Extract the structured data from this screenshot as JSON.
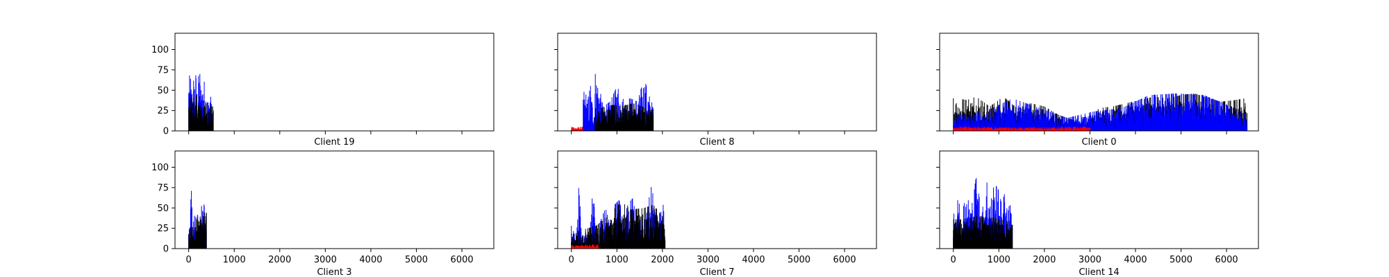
{
  "chart_data": [
    {
      "type": "bar",
      "title": "Client 19",
      "row": 0,
      "col": 0,
      "xlim": [
        -300,
        6700
      ],
      "ylim": [
        0,
        120
      ],
      "xticks": [
        0,
        1000,
        2000,
        3000,
        4000,
        5000,
        6000
      ],
      "xticklabels_visible": false,
      "yticks": [
        0,
        25,
        50,
        75,
        100
      ],
      "yticklabels_visible": true,
      "segments": [
        {
          "x": [
            0,
            540
          ],
          "color": "#0000ff",
          "peaks": [
            [
              30,
              68
            ],
            [
              70,
              55
            ],
            [
              110,
              62
            ],
            [
              150,
              72
            ],
            [
              190,
              48
            ],
            [
              230,
              78
            ],
            [
              270,
              58
            ],
            [
              310,
              62
            ],
            [
              350,
              60
            ],
            [
              390,
              44
            ],
            [
              430,
              40
            ],
            [
              470,
              50
            ],
            [
              510,
              30
            ]
          ],
          "base": 20
        },
        {
          "x": [
            0,
            540
          ],
          "color": "#000000",
          "peaks": [
            [
              90,
              40
            ],
            [
              200,
              45
            ],
            [
              320,
              38
            ],
            [
              440,
              30
            ]
          ],
          "base": 15
        }
      ]
    },
    {
      "type": "bar",
      "title": "Client 8",
      "row": 0,
      "col": 1,
      "xlim": [
        -300,
        6700
      ],
      "ylim": [
        0,
        120
      ],
      "xticks": [
        0,
        1000,
        2000,
        3000,
        4000,
        5000,
        6000
      ],
      "xticklabels_visible": false,
      "yticks": [
        0,
        25,
        50,
        75,
        100
      ],
      "yticklabels_visible": false,
      "segments": [
        {
          "x": [
            0,
            260
          ],
          "color": "#ff0000",
          "peaks": [
            [
              20,
              6
            ],
            [
              120,
              4
            ],
            [
              220,
              5
            ]
          ],
          "base": 3
        },
        {
          "x": [
            260,
            520
          ],
          "color": "#0000ff",
          "peaks": [
            [
              300,
              48
            ],
            [
              360,
              38
            ],
            [
              420,
              56
            ],
            [
              480,
              30
            ]
          ],
          "base": 12
        },
        {
          "x": [
            520,
            1800
          ],
          "color": "#0000ff",
          "peaks": [
            [
              560,
              70
            ],
            [
              700,
              30
            ],
            [
              850,
              36
            ],
            [
              1000,
              55
            ],
            [
              1150,
              38
            ],
            [
              1300,
              40
            ],
            [
              1450,
              36
            ],
            [
              1600,
              65
            ],
            [
              1750,
              35
            ]
          ],
          "base": 15
        },
        {
          "x": [
            520,
            1800
          ],
          "color": "#000000",
          "peaks": [
            [
              650,
              28
            ],
            [
              900,
              32
            ],
            [
              1100,
              30
            ],
            [
              1350,
              34
            ],
            [
              1550,
              30
            ],
            [
              1700,
              26
            ]
          ],
          "base": 12
        }
      ]
    },
    {
      "type": "bar",
      "title": "Client 0",
      "row": 0,
      "col": 2,
      "xlim": [
        -300,
        6700
      ],
      "ylim": [
        0,
        120
      ],
      "xticks": [
        0,
        1000,
        2000,
        3000,
        4000,
        5000,
        6000
      ],
      "xticklabels_visible": false,
      "yticks": [
        0,
        25,
        50,
        75,
        100
      ],
      "yticklabels_visible": false,
      "segments": [
        {
          "x": [
            0,
            6450
          ],
          "color": "#000000",
          "peaks": [
            [
              50,
              40
            ],
            [
              300,
              38
            ],
            [
              500,
              42
            ],
            [
              800,
              30
            ],
            [
              1100,
              42
            ],
            [
              1400,
              28
            ],
            [
              1700,
              34
            ],
            [
              2000,
              30
            ],
            [
              2300,
              20
            ],
            [
              2600,
              14
            ],
            [
              2900,
              10
            ],
            [
              3200,
              28
            ],
            [
              3500,
              30
            ],
            [
              3800,
              34
            ],
            [
              4100,
              38
            ],
            [
              4400,
              42
            ],
            [
              4700,
              40
            ],
            [
              5000,
              44
            ],
            [
              5300,
              46
            ],
            [
              5600,
              40
            ],
            [
              5900,
              36
            ],
            [
              6200,
              38
            ],
            [
              6400,
              40
            ]
          ],
          "base": 8
        },
        {
          "x": [
            0,
            6450
          ],
          "color": "#0000ff",
          "peaks": [
            [
              200,
              20
            ],
            [
              700,
              24
            ],
            [
              1300,
              40
            ],
            [
              1900,
              28
            ],
            [
              2500,
              16
            ],
            [
              3100,
              24
            ],
            [
              3700,
              28
            ],
            [
              4300,
              44
            ],
            [
              4900,
              46
            ],
            [
              5500,
              44
            ],
            [
              6100,
              30
            ],
            [
              6450,
              20
            ]
          ],
          "base": 8
        },
        {
          "x": [
            0,
            3000
          ],
          "color": "#ff0000",
          "peaks": [
            [
              400,
              5
            ],
            [
              1500,
              4
            ],
            [
              2700,
              5
            ]
          ],
          "base": 2
        }
      ]
    },
    {
      "type": "bar",
      "title": "Client 3",
      "row": 1,
      "col": 0,
      "xlim": [
        -300,
        6700
      ],
      "ylim": [
        0,
        120
      ],
      "xticks": [
        0,
        1000,
        2000,
        3000,
        4000,
        5000,
        6000
      ],
      "xticklabels_visible": true,
      "yticks": [
        0,
        25,
        50,
        75,
        100
      ],
      "yticklabels_visible": true,
      "segments": [
        {
          "x": [
            0,
            390
          ],
          "color": "#0000ff",
          "peaks": [
            [
              30,
              24
            ],
            [
              60,
              85
            ],
            [
              100,
              30
            ],
            [
              150,
              50
            ],
            [
              200,
              40
            ],
            [
              250,
              30
            ],
            [
              300,
              65
            ],
            [
              350,
              50
            ],
            [
              380,
              36
            ]
          ],
          "base": 15
        },
        {
          "x": [
            0,
            390
          ],
          "color": "#000000",
          "peaks": [
            [
              80,
              26
            ],
            [
              170,
              38
            ],
            [
              230,
              32
            ],
            [
              320,
              62
            ],
            [
              370,
              44
            ]
          ],
          "base": 15
        }
      ]
    },
    {
      "type": "bar",
      "title": "Client 7",
      "row": 1,
      "col": 1,
      "xlim": [
        -300,
        6700
      ],
      "ylim": [
        0,
        120
      ],
      "xticks": [
        0,
        1000,
        2000,
        3000,
        4000,
        5000,
        6000
      ],
      "xticklabels_visible": true,
      "yticks": [
        0,
        25,
        50,
        75,
        100
      ],
      "yticklabels_visible": false,
      "segments": [
        {
          "x": [
            0,
            2060
          ],
          "color": "#0000ff",
          "peaks": [
            [
              20,
              28
            ],
            [
              100,
              10
            ],
            [
              160,
              76
            ],
            [
              250,
              8
            ],
            [
              320,
              20
            ],
            [
              400,
              8
            ],
            [
              470,
              75
            ],
            [
              560,
              12
            ],
            [
              650,
              36
            ],
            [
              750,
              50
            ],
            [
              850,
              30
            ],
            [
              950,
              54
            ],
            [
              1050,
              60
            ],
            [
              1150,
              36
            ],
            [
              1250,
              56
            ],
            [
              1350,
              62
            ],
            [
              1450,
              30
            ],
            [
              1550,
              40
            ],
            [
              1650,
              44
            ],
            [
              1750,
              76
            ],
            [
              1850,
              55
            ],
            [
              1950,
              42
            ],
            [
              2050,
              60
            ]
          ],
          "base": 6
        },
        {
          "x": [
            0,
            2060
          ],
          "color": "#000000",
          "peaks": [
            [
              60,
              18
            ],
            [
              300,
              24
            ],
            [
              540,
              28
            ],
            [
              800,
              40
            ],
            [
              1100,
              58
            ],
            [
              1300,
              48
            ],
            [
              1600,
              50
            ],
            [
              1800,
              54
            ],
            [
              2000,
              40
            ]
          ],
          "base": 5
        },
        {
          "x": [
            0,
            600
          ],
          "color": "#ff0000",
          "peaks": [
            [
              200,
              4
            ],
            [
              450,
              5
            ]
          ],
          "base": 2
        }
      ]
    },
    {
      "type": "bar",
      "title": "Client 14",
      "row": 1,
      "col": 2,
      "xlim": [
        -300,
        6700
      ],
      "ylim": [
        0,
        120
      ],
      "xticks": [
        0,
        1000,
        2000,
        3000,
        4000,
        5000,
        6000
      ],
      "xticklabels_visible": true,
      "yticks": [
        0,
        25,
        50,
        75,
        100
      ],
      "yticklabels_visible": false,
      "segments": [
        {
          "x": [
            0,
            1300
          ],
          "color": "#0000ff",
          "peaks": [
            [
              30,
              52
            ],
            [
              100,
              60
            ],
            [
              180,
              48
            ],
            [
              260,
              70
            ],
            [
              340,
              58
            ],
            [
              420,
              56
            ],
            [
              500,
              88
            ],
            [
              580,
              60
            ],
            [
              660,
              50
            ],
            [
              740,
              82
            ],
            [
              820,
              58
            ],
            [
              900,
              80
            ],
            [
              980,
              74
            ],
            [
              1060,
              56
            ],
            [
              1140,
              70
            ],
            [
              1220,
              52
            ],
            [
              1280,
              55
            ]
          ],
          "base": 30
        },
        {
          "x": [
            0,
            1300
          ],
          "color": "#000000",
          "peaks": [
            [
              200,
              36
            ],
            [
              520,
              40
            ],
            [
              860,
              38
            ],
            [
              1180,
              34
            ]
          ],
          "base": 22
        }
      ]
    }
  ],
  "colors": {
    "primary": "#0000ff",
    "secondary": "#000000",
    "tertiary": "#ff0000",
    "frame": "#000000",
    "background": "#ffffff"
  }
}
